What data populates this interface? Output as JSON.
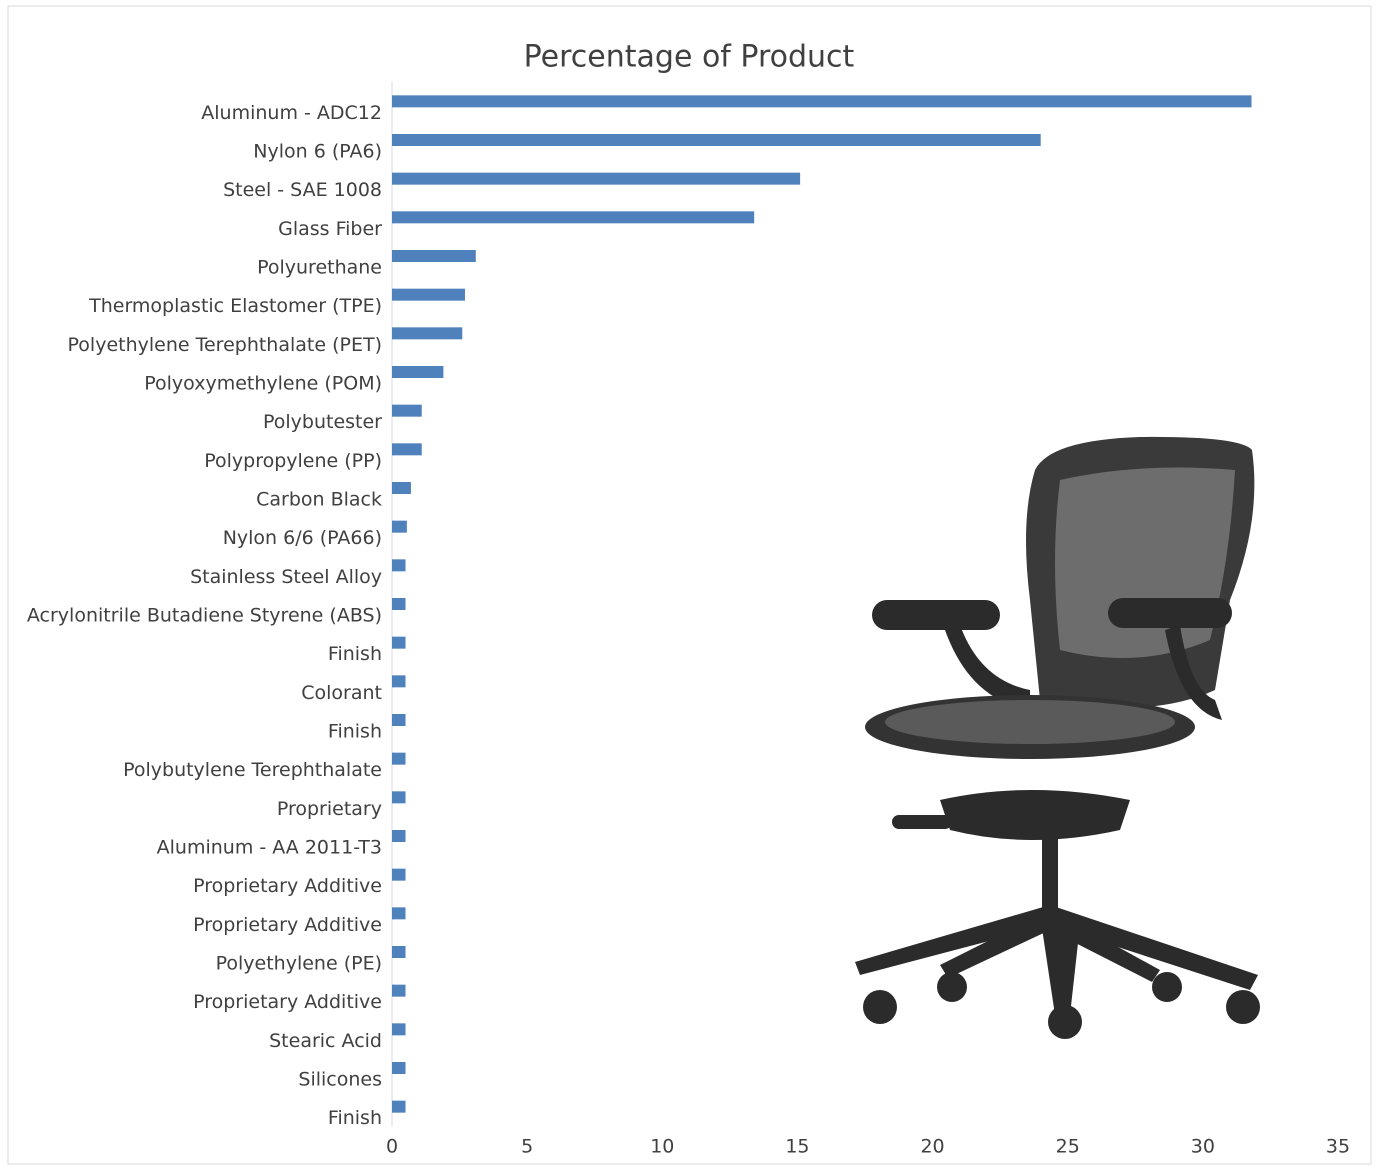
{
  "chart_data": {
    "type": "bar",
    "orientation": "horizontal",
    "title": "Percentage of Product",
    "categories": [
      "Aluminum - ADC12",
      "Nylon 6 (PA6)",
      "Steel - SAE 1008",
      "Glass Fiber",
      "Polyurethane",
      "Thermoplastic Elastomer (TPE)",
      "Polyethylene Terephthalate (PET)",
      "Polyoxymethylene (POM)",
      "Polybutester",
      "Polypropylene (PP)",
      "Carbon Black",
      "Nylon 6/6 (PA66)",
      "Stainless Steel Alloy",
      "Acrylonitrile Butadiene Styrene (ABS)",
      "Finish",
      "Colorant",
      "Finish",
      "Polybutylene Terephthalate",
      "Proprietary",
      "Aluminum - AA 2011-T3",
      "Proprietary Additive",
      "Proprietary Additive",
      "Polyethylene (PE)",
      "Proprietary Additive",
      "Stearic Acid",
      "Silicones",
      "Finish"
    ],
    "values": [
      31.8,
      24,
      15.1,
      13.4,
      3.1,
      2.7,
      2.6,
      1.9,
      1.1,
      1.1,
      0.7,
      0.55,
      0.5,
      0.5,
      0.5,
      0.5,
      0.5,
      0.5,
      0.5,
      0.5,
      0.5,
      0.5,
      0.5,
      0.5,
      0.5,
      0.5,
      0.5
    ],
    "color": "#4f81bd",
    "xlim": [
      0,
      35
    ],
    "xticks": [
      0,
      5,
      10,
      15,
      20,
      25,
      30,
      35
    ],
    "grid": false
  }
}
